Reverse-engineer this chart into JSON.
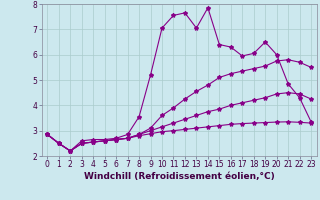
{
  "background_color": "#cce8ee",
  "grid_color": "#aacccc",
  "line_color": "#880088",
  "xlabel": "Windchill (Refroidissement éolien,°C)",
  "xlim": [
    -0.5,
    23.5
  ],
  "ylim": [
    2.0,
    8.0
  ],
  "xticks": [
    0,
    1,
    2,
    3,
    4,
    5,
    6,
    7,
    8,
    9,
    10,
    11,
    12,
    13,
    14,
    15,
    16,
    17,
    18,
    19,
    20,
    21,
    22,
    23
  ],
  "yticks": [
    2,
    3,
    4,
    5,
    6,
    7,
    8
  ],
  "series": [
    {
      "x": [
        0,
        1,
        2,
        3,
        4,
        5,
        6,
        7,
        8,
        9,
        10,
        11,
        12,
        13,
        14,
        15,
        16,
        17,
        18,
        19,
        20,
        21,
        22,
        23
      ],
      "y": [
        2.85,
        2.5,
        2.2,
        2.6,
        2.65,
        2.65,
        2.7,
        2.85,
        3.55,
        5.2,
        7.05,
        7.55,
        7.65,
        7.05,
        7.85,
        6.4,
        6.3,
        5.95,
        6.05,
        6.5,
        6.0,
        4.85,
        4.3,
        3.35
      ]
    },
    {
      "x": [
        0,
        1,
        2,
        3,
        4,
        5,
        6,
        7,
        8,
        9,
        10,
        11,
        12,
        13,
        14,
        15,
        16,
        17,
        18,
        19,
        20,
        21,
        22,
        23
      ],
      "y": [
        2.85,
        2.5,
        2.2,
        2.5,
        2.55,
        2.6,
        2.65,
        2.7,
        2.85,
        3.1,
        3.6,
        3.9,
        4.25,
        4.55,
        4.8,
        5.1,
        5.25,
        5.35,
        5.45,
        5.55,
        5.75,
        5.8,
        5.7,
        5.5
      ]
    },
    {
      "x": [
        0,
        1,
        2,
        3,
        4,
        5,
        6,
        7,
        8,
        9,
        10,
        11,
        12,
        13,
        14,
        15,
        16,
        17,
        18,
        19,
        20,
        21,
        22,
        23
      ],
      "y": [
        2.85,
        2.5,
        2.2,
        2.5,
        2.55,
        2.6,
        2.65,
        2.7,
        2.85,
        3.0,
        3.15,
        3.3,
        3.45,
        3.6,
        3.75,
        3.85,
        4.0,
        4.1,
        4.2,
        4.3,
        4.45,
        4.5,
        4.45,
        4.25
      ]
    },
    {
      "x": [
        0,
        1,
        2,
        3,
        4,
        5,
        6,
        7,
        8,
        9,
        10,
        11,
        12,
        13,
        14,
        15,
        16,
        17,
        18,
        19,
        20,
        21,
        22,
        23
      ],
      "y": [
        2.85,
        2.5,
        2.2,
        2.5,
        2.55,
        2.6,
        2.65,
        2.7,
        2.8,
        2.88,
        2.96,
        3.0,
        3.05,
        3.1,
        3.15,
        3.2,
        3.25,
        3.28,
        3.3,
        3.32,
        3.34,
        3.35,
        3.33,
        3.3
      ]
    }
  ],
  "marker": "*",
  "markersize": 3,
  "linewidth": 0.8,
  "tick_fontsize": 5.5,
  "label_fontsize": 6.5
}
